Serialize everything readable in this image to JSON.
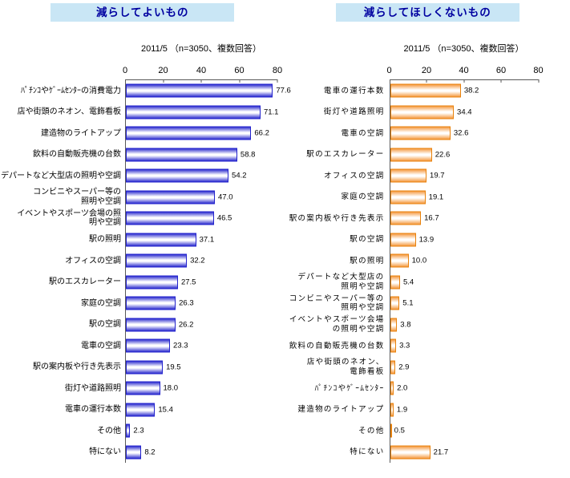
{
  "colors": {
    "title_background": "#C9E6F5",
    "title_text": "#0000A0",
    "axis_line": "#595959",
    "left_bar_fill": "#3030D0",
    "left_bar_border": "#2222CC",
    "right_bar_fill": "#F59B42",
    "right_bar_border": "#E8820C"
  },
  "chart_data": [
    {
      "type": "bar",
      "orientation": "horizontal",
      "title": "減らしてよいもの",
      "subtitle": "2011/5 （n=3050、複数回答）",
      "xlabel": "",
      "ylabel": "",
      "xlim": [
        0,
        80
      ],
      "ticks": [
        0,
        20,
        40,
        60,
        80
      ],
      "grid": false,
      "legend": "none",
      "bar_fill": "#3030D0",
      "bar_border": "#2222CC",
      "categories": [
        "ﾊﾟﾁﾝｺやｹﾞｰﾑｾﾝﾀｰの消費電力",
        "店や街頭のネオン、電飾看板",
        "建造物のライトアップ",
        "飲料の自動販売機の台数",
        "デパートなど大型店の照明や空調",
        "コンビニやスーパー等の\n照明や空調",
        "イベントやスポーツ会場の照\n明や空調",
        "駅の照明",
        "オフィスの空調",
        "駅のエスカレーター",
        "家庭の空調",
        "駅の空調",
        "電車の空調",
        "駅の案内板や行き先表示",
        "街灯や道路照明",
        "電車の運行本数",
        "その他",
        "特にない"
      ],
      "values": [
        77.6,
        71.1,
        66.2,
        58.8,
        54.2,
        47.0,
        46.5,
        37.1,
        32.2,
        27.5,
        26.3,
        26.2,
        23.3,
        19.5,
        18.0,
        15.4,
        2.3,
        8.2
      ],
      "value_labels": [
        "77.6",
        "71.1",
        "66.2",
        "58.8",
        "54.2",
        "47.0",
        "46.5",
        "37.1",
        "32.2",
        "27.5",
        "26.3",
        "26.2",
        "23.3",
        "19.5",
        "18.0",
        "15.4",
        "2.3",
        "8.2"
      ]
    },
    {
      "type": "bar",
      "orientation": "horizontal",
      "title": "減らしてほしくないもの",
      "subtitle": "2011/5 （n=3050、複数回答）",
      "xlabel": "",
      "ylabel": "",
      "xlim": [
        0,
        80
      ],
      "ticks": [
        0,
        20,
        40,
        60,
        80
      ],
      "grid": false,
      "legend": "none",
      "bar_fill": "#F59B42",
      "bar_border": "#E8820C",
      "categories": [
        "電車の運行本数",
        "街灯や道路照明",
        "電車の空調",
        "駅のエスカレーター",
        "オフィスの空調",
        "家庭の空調",
        "駅の案内板や行き先表示",
        "駅の空調",
        "駅の照明",
        "デパートなど大型店の\n照明や空調",
        "コンビニやスーパー等の\n照明や空調",
        "イベントやスポーツ会場\nの照明や空調",
        "飲料の自動販売機の台数",
        "店や街頭のネオン、\n電飾看板",
        "ﾊﾟﾁﾝｺやｹﾞｰﾑｾﾝﾀｰ",
        "建造物のライトアップ",
        "その他",
        "特にない"
      ],
      "values": [
        38.2,
        34.4,
        32.6,
        22.6,
        19.7,
        19.1,
        16.7,
        13.9,
        10.0,
        5.4,
        5.1,
        3.8,
        3.3,
        2.9,
        2.0,
        1.9,
        0.5,
        21.7
      ],
      "value_labels": [
        "38.2",
        "34.4",
        "32.6",
        "22.6",
        "19.7",
        "19.1",
        "16.7",
        "13.9",
        "10.0",
        "5.4",
        "5.1",
        "3.8",
        "3.3",
        "2.9",
        "2.0",
        "1.9",
        "0.5",
        "21.7"
      ]
    }
  ]
}
